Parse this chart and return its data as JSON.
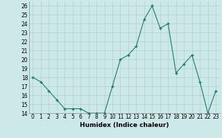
{
  "x": [
    0,
    1,
    2,
    3,
    4,
    5,
    6,
    7,
    8,
    9,
    10,
    11,
    12,
    13,
    14,
    15,
    16,
    17,
    18,
    19,
    20,
    21,
    22,
    23
  ],
  "y": [
    18,
    17.5,
    16.5,
    15.5,
    14.5,
    14.5,
    14.5,
    14,
    14,
    14,
    17,
    20,
    20.5,
    21.5,
    24.5,
    26,
    23.5,
    24,
    18.5,
    19.5,
    20.5,
    17.5,
    14,
    16.5
  ],
  "line_color": "#1a7a5e",
  "marker_color": "#1a7a5e",
  "bg_color": "#cce8e8",
  "grid_color": "#b0d0d0",
  "xlabel": "Humidex (Indice chaleur)",
  "xlim": [
    -0.5,
    23.5
  ],
  "ylim": [
    14,
    26.5
  ],
  "yticks": [
    14,
    15,
    16,
    17,
    18,
    19,
    20,
    21,
    22,
    23,
    24,
    25,
    26
  ],
  "xticks": [
    0,
    1,
    2,
    3,
    4,
    5,
    6,
    7,
    8,
    9,
    10,
    11,
    12,
    13,
    14,
    15,
    16,
    17,
    18,
    19,
    20,
    21,
    22,
    23
  ],
  "tick_fontsize": 5.5,
  "label_fontsize": 6.5
}
